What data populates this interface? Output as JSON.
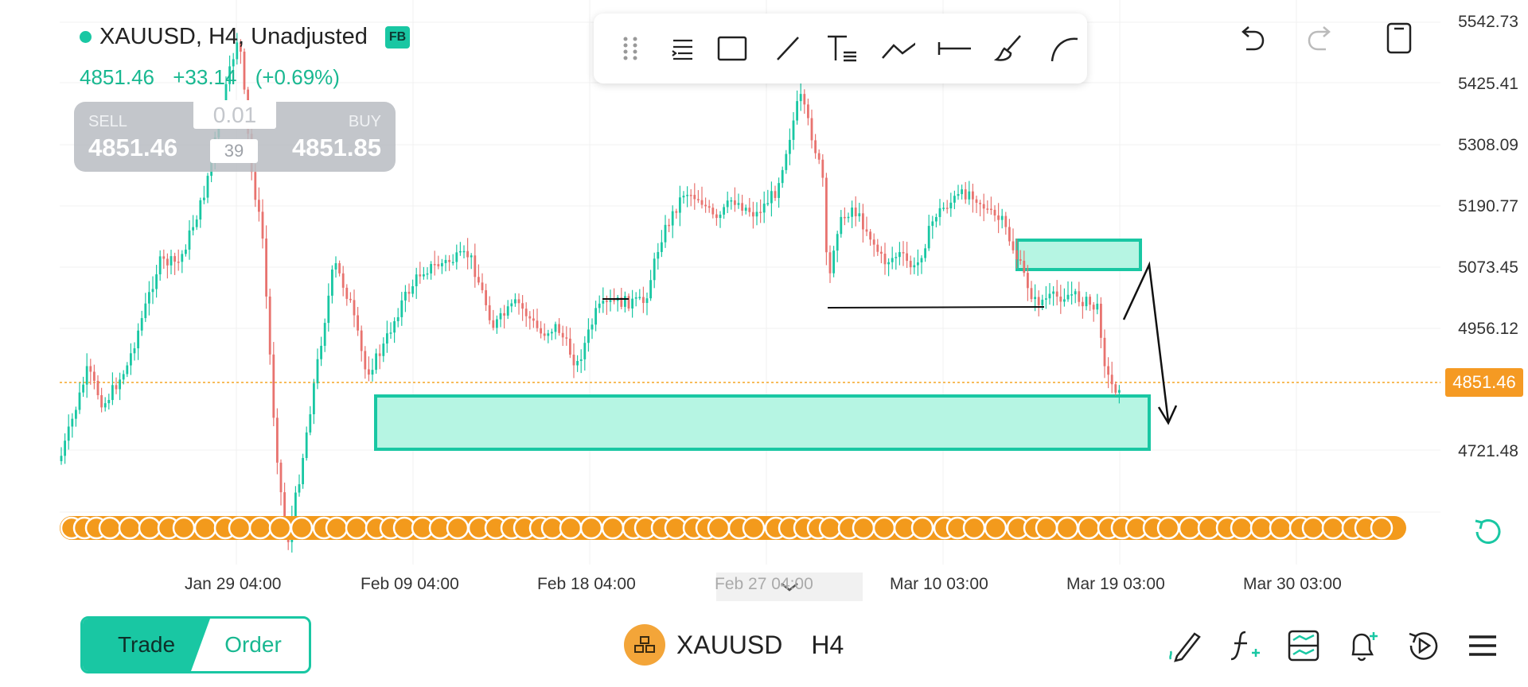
{
  "symbol": {
    "name": "XAUUSD",
    "timeframe": "H4",
    "adjustment": "Unadjusted",
    "header": "XAUUSD, H4, Unadjusted",
    "badge": "FB"
  },
  "quote": {
    "last": "4851.46",
    "change": "+33.14",
    "change_pct": "(+0.69%)"
  },
  "trade_panel": {
    "sell_label": "SELL",
    "sell_price": "4851.46",
    "buy_label": "BUY",
    "buy_price": "4851.85",
    "quantity": "0.01",
    "spread": "39"
  },
  "price_axis": {
    "labels": [
      "5542.73",
      "5425.41",
      "5308.09",
      "5190.77",
      "5073.45",
      "4956.12",
      "4721.48"
    ],
    "current": "4851.46"
  },
  "time_axis": {
    "labels": [
      "Jan 29 04:00",
      "Feb 09 04:00",
      "Feb 18 04:00",
      "Feb 27 04:00",
      "Mar 10 03:00",
      "Mar 19 03:00",
      "Mar 30 03:00"
    ]
  },
  "drawing_tools": [
    "drag-handle",
    "tool-list",
    "rectangle",
    "trend-line",
    "text",
    "path",
    "horizontal-line",
    "brush",
    "arc"
  ],
  "chart_controls": [
    "undo",
    "redo",
    "delete"
  ],
  "bottom_nav": {
    "trade_label": "Trade",
    "order_label": "Order",
    "symbol": "XAUUSD",
    "timeframe": "H4",
    "actions": [
      "draw",
      "indicators",
      "templates",
      "alerts",
      "replay",
      "menu"
    ]
  },
  "colors": {
    "up": "#19c7a3",
    "down": "#e8736f",
    "accent": "#19c7a3",
    "current_price": "#f59a23",
    "zone_fill": "#b6f5e3",
    "events": "#f39a1c"
  }
}
